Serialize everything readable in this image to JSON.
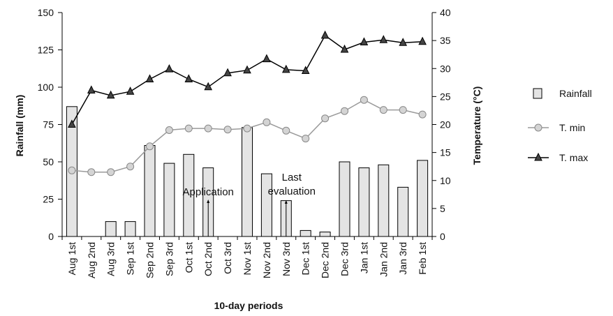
{
  "chart_data": {
    "type": "bar",
    "xlabel": "10-day periods",
    "ylabel_left": "Rainfall (mm)",
    "ylabel_right": "Temperature (°C)",
    "ylim_left": [
      0,
      150
    ],
    "yticks_left": [
      0,
      25,
      50,
      75,
      100,
      125,
      150
    ],
    "ylim_right": [
      0,
      40
    ],
    "yticks_right": [
      0,
      5,
      10,
      15,
      20,
      25,
      30,
      35,
      40
    ],
    "categories": [
      "Aug 1st",
      "Aug 2nd",
      "Aug 3rd",
      "Sep 1st",
      "Sep 2nd",
      "Sep 3rd",
      "Oct 1st",
      "Oct 2nd",
      "Oct 3rd",
      "Nov 1st",
      "Nov 2nd",
      "Nov 3rd",
      "Dec 1st",
      "Dec 2nd",
      "Dec 3rd",
      "Jan 1st",
      "Jan 2nd",
      "Jan 3rd",
      "Feb 1st"
    ],
    "series": [
      {
        "name": "Rainfall",
        "type": "bar",
        "axis": "left",
        "color": "#e4e4e4",
        "values": [
          87,
          0,
          10,
          10,
          61,
          49,
          55,
          46,
          0,
          73,
          42,
          24,
          4,
          3,
          50,
          46,
          48,
          33,
          51
        ]
      },
      {
        "name": "T. min",
        "type": "line",
        "axis": "right",
        "color": "#9a9a9a",
        "marker": "circle",
        "values": [
          11.8,
          11.5,
          11.5,
          12.5,
          16.1,
          19.0,
          19.3,
          19.3,
          19.1,
          19.3,
          20.4,
          18.9,
          17.5,
          21.1,
          22.4,
          24.4,
          22.6,
          22.6,
          21.8
        ]
      },
      {
        "name": "T. max",
        "type": "line",
        "axis": "right",
        "color": "#000000",
        "marker": "triangle",
        "values": [
          20.0,
          26.1,
          25.2,
          25.9,
          28.1,
          29.9,
          28.1,
          26.7,
          29.2,
          29.7,
          31.7,
          29.8,
          29.6,
          35.9,
          33.4,
          34.7,
          35.1,
          34.6,
          34.8
        ]
      }
    ],
    "annotations": [
      {
        "text": "Application",
        "category": "Oct 2nd"
      },
      {
        "text": "Last evaluation",
        "lines": [
          "Last",
          "evaluation"
        ],
        "category": "Nov 3rd"
      }
    ],
    "legend_position": "right",
    "grid": false
  }
}
